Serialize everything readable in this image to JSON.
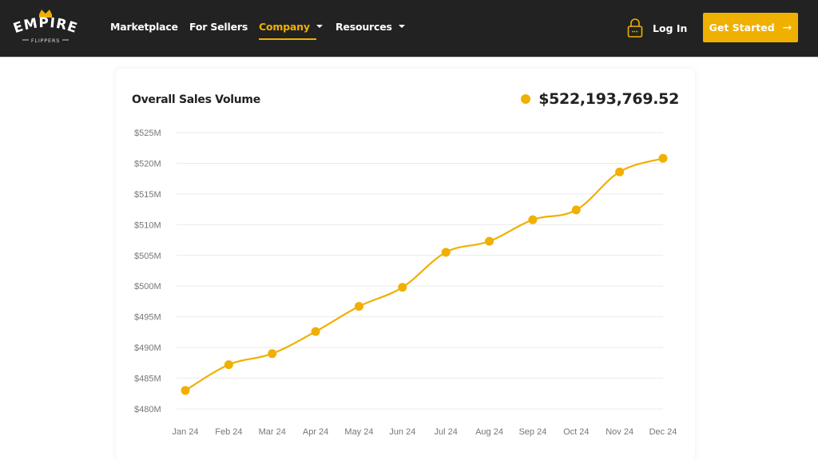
{
  "nav": {
    "logo_top": "EMPIRE",
    "logo_bottom": "FLIPPERS",
    "items": [
      {
        "label": "Marketplace",
        "dropdown": false,
        "active": false
      },
      {
        "label": "For Sellers",
        "dropdown": false,
        "active": false
      },
      {
        "label": "Company",
        "dropdown": true,
        "active": true
      },
      {
        "label": "Resources",
        "dropdown": true,
        "active": false
      }
    ],
    "login_label": "Log In",
    "cta_label": "Get Started",
    "cta_arrow": "→"
  },
  "colors": {
    "accent": "#f0b000",
    "navbar_bg": "#222222",
    "text_dark": "#222222",
    "grid": "#ebebeb",
    "tick_text": "#777777"
  },
  "card": {
    "title": "Overall Sales Volume",
    "total": "$522,193,769.52"
  },
  "chart_data": {
    "type": "line",
    "title": "Overall Sales Volume",
    "xlabel": "",
    "ylabel": "",
    "categories": [
      "Jan 24",
      "Feb 24",
      "Mar 24",
      "Apr 24",
      "May 24",
      "Jun 24",
      "Jul 24",
      "Aug 24",
      "Sep 24",
      "Oct 24",
      "Nov 24",
      "Dec 24"
    ],
    "series": [
      {
        "name": "Overall Sales Volume ($M)",
        "values": [
          483.0,
          487.2,
          489.0,
          492.6,
          496.7,
          499.8,
          505.5,
          507.3,
          510.8,
          512.4,
          518.6,
          520.8
        ]
      }
    ],
    "yticks": [
      "$480M",
      "$485M",
      "$490M",
      "$495M",
      "$500M",
      "$505M",
      "$510M",
      "$515M",
      "$520M",
      "$525M"
    ],
    "ylim": [
      480,
      525
    ],
    "grid": true,
    "legend": "none",
    "smooth": true,
    "markers": true
  }
}
